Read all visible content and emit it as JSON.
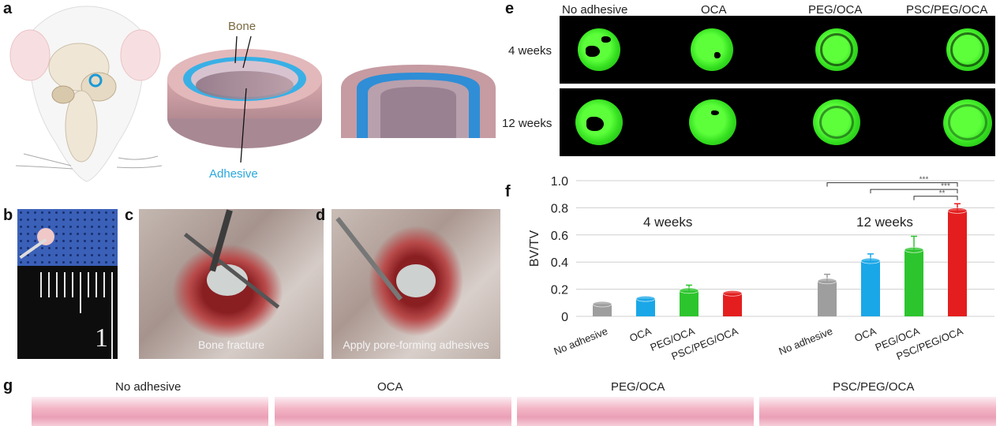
{
  "panel_letters": {
    "a": "a",
    "b": "b",
    "c": "c",
    "d": "d",
    "e": "e",
    "f": "f",
    "g": "g"
  },
  "panel_a": {
    "bone_label": "Bone",
    "adhesive_label": "Adhesive"
  },
  "panel_b": {
    "ruler_number": "1"
  },
  "panel_c": {
    "caption": "Bone fracture"
  },
  "panel_d": {
    "caption": "Apply pore-forming adhesives"
  },
  "panel_e": {
    "columns": [
      "No adhesive",
      "OCA",
      "PEG/OCA",
      "PSC/PEG/OCA"
    ],
    "rows": [
      "4 weeks",
      "12 weeks"
    ]
  },
  "chart_data": {
    "type": "bar",
    "title": "",
    "xlabel": "",
    "ylabel": "BV/TV",
    "ylim": [
      0,
      1.0
    ],
    "yticks": [
      "0",
      "0.2",
      "0.4",
      "0.6",
      "0.8",
      "1.0"
    ],
    "groups": [
      "4 weeks",
      "12 weeks"
    ],
    "categories": [
      "No adhesive",
      "OCA",
      "PEG/OCA",
      "PSC/PEG/OCA"
    ],
    "colors": [
      "#9e9e9e",
      "#1aa7e8",
      "#2dc52d",
      "#e41e1e"
    ],
    "series": [
      {
        "name": "4 weeks",
        "values": [
          0.09,
          0.13,
          0.19,
          0.17
        ],
        "errors": [
          0.0,
          0.0,
          0.04,
          0.0
        ]
      },
      {
        "name": "12 weeks",
        "values": [
          0.26,
          0.41,
          0.49,
          0.78
        ],
        "errors": [
          0.05,
          0.05,
          0.1,
          0.05
        ]
      }
    ],
    "significance": [
      {
        "from": "No adhesive",
        "to": "PSC/PEG/OCA",
        "group": "12 weeks",
        "label": "***"
      },
      {
        "from": "OCA",
        "to": "PSC/PEG/OCA",
        "group": "12 weeks",
        "label": "***"
      },
      {
        "from": "PEG/OCA",
        "to": "PSC/PEG/OCA",
        "group": "12 weeks",
        "label": "**"
      }
    ]
  },
  "panel_g": {
    "columns": [
      "No adhesive",
      "OCA",
      "PEG/OCA",
      "PSC/PEG/OCA"
    ]
  }
}
